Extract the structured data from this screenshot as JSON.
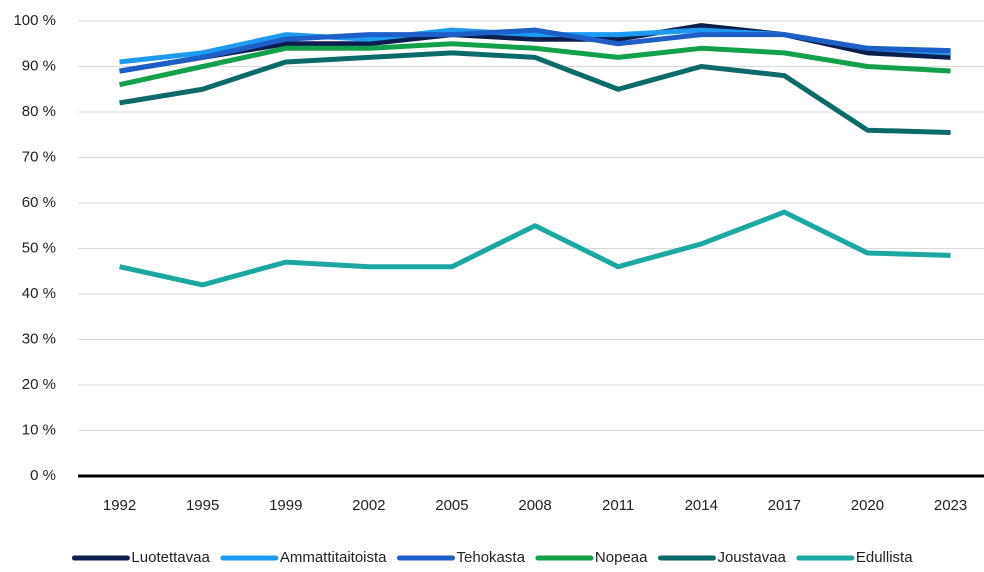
{
  "chart_data": {
    "type": "line",
    "categories": [
      "1992",
      "1995",
      "1999",
      "2002",
      "2005",
      "2008",
      "2011",
      "2014",
      "2017",
      "2020",
      "2023"
    ],
    "series": [
      {
        "name": "Luotettavaa",
        "color": "#0b1f4d",
        "values": [
          89,
          92,
          95,
          95,
          97,
          96,
          96,
          99,
          97,
          93,
          92
        ]
      },
      {
        "name": "Ammattitaitoista",
        "color": "#1e9bf0",
        "values": [
          91,
          93,
          97,
          96,
          98,
          97,
          97,
          98,
          97,
          94,
          93
        ]
      },
      {
        "name": "Tehokasta",
        "color": "#1d5fc7",
        "values": [
          89,
          92,
          96,
          97,
          97,
          98,
          95,
          97,
          97,
          94,
          93.5
        ]
      },
      {
        "name": "Nopeaa",
        "color": "#12a04a",
        "values": [
          86,
          90,
          94,
          94,
          95,
          94,
          92,
          94,
          93,
          90,
          89
        ]
      },
      {
        "name": "Joustavaa",
        "color": "#0a6b69",
        "values": [
          82,
          85,
          91,
          92,
          93,
          92,
          85,
          90,
          88,
          76,
          75.5
        ]
      },
      {
        "name": "Edullista",
        "color": "#1aa8a0",
        "values": [
          46,
          42,
          47,
          46,
          46,
          55,
          46,
          51,
          58,
          49,
          48.5
        ]
      }
    ],
    "ylim": [
      0,
      100
    ],
    "yticks": [
      {
        "value": 0,
        "label": "0 %"
      },
      {
        "value": 10,
        "label": "10 %"
      },
      {
        "value": 20,
        "label": "20 %"
      },
      {
        "value": 30,
        "label": "30 %"
      },
      {
        "value": 40,
        "label": "40 %"
      },
      {
        "value": 50,
        "label": "50 %"
      },
      {
        "value": 60,
        "label": "60 %"
      },
      {
        "value": 70,
        "label": "70 %"
      },
      {
        "value": 80,
        "label": "80 %"
      },
      {
        "value": 90,
        "label": "90 %"
      },
      {
        "value": 100,
        "label": "100 %"
      }
    ],
    "grid": true,
    "legend": "bottom"
  }
}
